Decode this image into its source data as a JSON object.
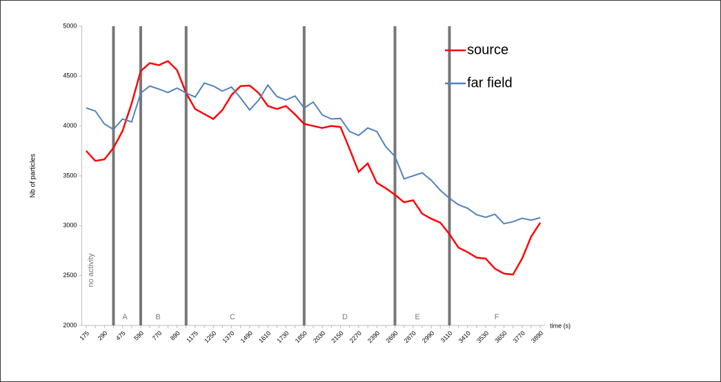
{
  "chart_data": {
    "type": "line",
    "y_axis_label": "Nb of particles",
    "x_axis_label": "time (s)",
    "annotations": [
      "no activity",
      "A",
      "B",
      "C",
      "D",
      "E",
      "F"
    ],
    "categories": [
      "175",
      null,
      "290",
      null,
      "475",
      null,
      "590",
      null,
      "770",
      null,
      "890",
      null,
      "1175",
      null,
      "1250",
      null,
      "1370",
      null,
      "1490",
      null,
      "1610",
      null,
      "1730",
      null,
      "1850",
      null,
      "2030",
      null,
      "2150",
      null,
      "2270",
      null,
      "2390",
      null,
      "2690",
      null,
      "2870",
      null,
      "2990",
      null,
      "3110",
      null,
      "3410",
      null,
      "3530",
      null,
      "3650",
      null,
      "3770",
      null,
      "3890"
    ],
    "series": [
      {
        "name": "source",
        "color": "#ff0000",
        "values": [
          3750,
          3650,
          3665,
          3780,
          3950,
          4225,
          4550,
          4630,
          4610,
          4650,
          4560,
          4330,
          4170,
          4120,
          4070,
          4160,
          4310,
          4400,
          4405,
          4330,
          4200,
          4170,
          4200,
          4115,
          4020,
          4000,
          3980,
          4000,
          3990,
          3770,
          3540,
          3625,
          3430,
          3375,
          3310,
          3235,
          3255,
          3120,
          3070,
          3030,
          2915,
          2780,
          2735,
          2680,
          2670,
          2570,
          2520,
          2510,
          2670,
          2890,
          3030
        ]
      },
      {
        "name": "far field",
        "color": "#4f81bd",
        "values": [
          4180,
          4150,
          4020,
          3965,
          4070,
          4040,
          4330,
          4400,
          4370,
          4335,
          4380,
          4330,
          4290,
          4430,
          4400,
          4350,
          4390,
          4280,
          4160,
          4260,
          4410,
          4295,
          4260,
          4300,
          4180,
          4240,
          4110,
          4070,
          4075,
          3945,
          3905,
          3980,
          3945,
          3790,
          3695,
          3470,
          3500,
          3530,
          3455,
          3355,
          3275,
          3210,
          3175,
          3110,
          3085,
          3115,
          3020,
          3040,
          3075,
          3055,
          3080
        ]
      }
    ],
    "ylim": [
      2000,
      5000
    ],
    "yticks": [
      2000,
      2500,
      3000,
      3500,
      4000,
      4500,
      5000
    ],
    "grid": false
  }
}
